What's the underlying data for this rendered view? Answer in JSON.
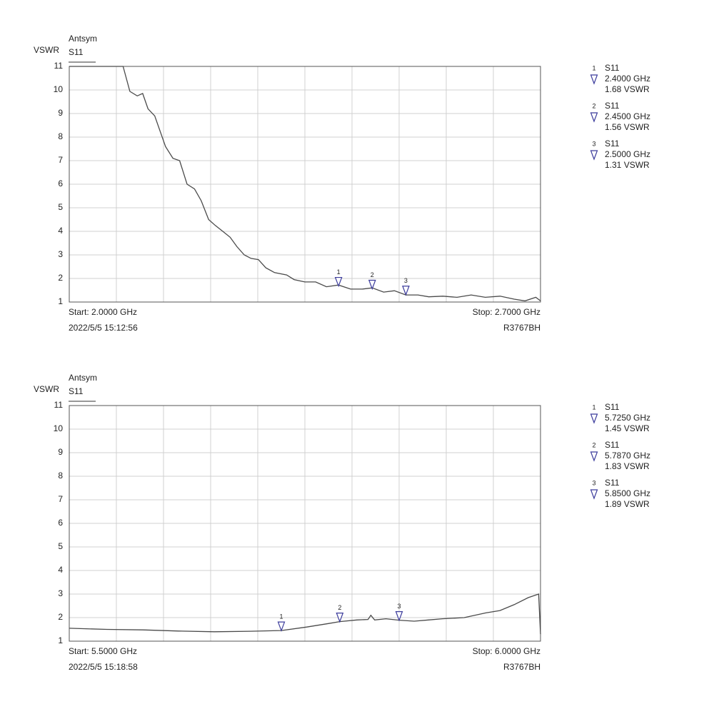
{
  "chart_data": [
    {
      "type": "line",
      "title": "Antsym",
      "y_label": "VSWR",
      "start_label": "Start: 2.0000 GHz",
      "stop_label": "Stop: 2.7000 GHz",
      "timestamp": "2022/5/5 15:12:56",
      "instrument": "R3767BH",
      "xlim": [
        2.0,
        2.7
      ],
      "ylim": [
        1,
        11
      ],
      "yticks": [
        1,
        2,
        3,
        4,
        5,
        6,
        7,
        8,
        9,
        10,
        11
      ],
      "grid": true,
      "x": [
        2.0,
        2.08,
        2.09,
        2.101,
        2.109,
        2.117,
        2.127,
        2.143,
        2.154,
        2.164,
        2.175,
        2.186,
        2.196,
        2.207,
        2.217,
        2.228,
        2.239,
        2.249,
        2.26,
        2.27,
        2.281,
        2.292,
        2.305,
        2.323,
        2.334,
        2.35,
        2.366,
        2.382,
        2.4,
        2.418,
        2.435,
        2.45,
        2.467,
        2.483,
        2.5,
        2.518,
        2.534,
        2.555,
        2.576,
        2.597,
        2.618,
        2.64,
        2.661,
        2.677,
        2.693,
        2.7
      ],
      "series": [
        {
          "name": "S11",
          "color": "#4a4a4a",
          "values": [
            11,
            11,
            9.94,
            9.75,
            9.85,
            9.2,
            8.9,
            7.6,
            7.1,
            7.0,
            6.0,
            5.8,
            5.3,
            4.5,
            4.25,
            4.0,
            3.75,
            3.35,
            3.0,
            2.85,
            2.8,
            2.45,
            2.25,
            2.15,
            1.95,
            1.85,
            1.85,
            1.65,
            1.72,
            1.55,
            1.55,
            1.6,
            1.42,
            1.48,
            1.3,
            1.3,
            1.22,
            1.25,
            1.2,
            1.3,
            1.2,
            1.25,
            1.12,
            1.05,
            1.2,
            1.05
          ]
        }
      ],
      "markers": [
        {
          "number": "1",
          "trace": "S11",
          "x": 2.4,
          "x_label": "2.4000 GHz",
          "value": 1.68,
          "value_label": "1.68 VSWR"
        },
        {
          "number": "2",
          "trace": "S11",
          "x": 2.45,
          "x_label": "2.4500 GHz",
          "value": 1.56,
          "value_label": "1.56 VSWR"
        },
        {
          "number": "3",
          "trace": "S11",
          "x": 2.5,
          "x_label": "2.5000 GHz",
          "value": 1.31,
          "value_label": "1.31 VSWR"
        }
      ]
    },
    {
      "type": "line",
      "title": "Antsym",
      "y_label": "VSWR",
      "start_label": "Start: 5.5000 GHz",
      "stop_label": "Stop: 6.0000 GHz",
      "timestamp": "2022/5/5 15:18:58",
      "instrument": "R3767BH",
      "xlim": [
        5.5,
        6.0
      ],
      "ylim": [
        1,
        11
      ],
      "yticks": [
        1,
        2,
        3,
        4,
        5,
        6,
        7,
        8,
        9,
        10,
        11
      ],
      "grid": true,
      "x": [
        5.5,
        5.54,
        5.578,
        5.616,
        5.654,
        5.692,
        5.725,
        5.752,
        5.775,
        5.787,
        5.805,
        5.817,
        5.82,
        5.824,
        5.836,
        5.85,
        5.866,
        5.881,
        5.896,
        5.919,
        5.942,
        5.957,
        5.972,
        5.987,
        5.998,
        6.0
      ],
      "series": [
        {
          "name": "S11",
          "color": "#4a4a4a",
          "values": [
            1.55,
            1.5,
            1.48,
            1.43,
            1.4,
            1.42,
            1.45,
            1.6,
            1.75,
            1.83,
            1.9,
            1.92,
            2.1,
            1.9,
            1.95,
            1.89,
            1.85,
            1.9,
            1.95,
            2.0,
            2.2,
            2.3,
            2.55,
            2.85,
            3.0,
            1.3
          ]
        }
      ],
      "markers": [
        {
          "number": "1",
          "trace": "S11",
          "x": 5.725,
          "x_label": "5.7250 GHz",
          "value": 1.45,
          "value_label": "1.45 VSWR"
        },
        {
          "number": "2",
          "trace": "S11",
          "x": 5.787,
          "x_label": "5.7870 GHz",
          "value": 1.83,
          "value_label": "1.83 VSWR"
        },
        {
          "number": "3",
          "trace": "S11",
          "x": 5.85,
          "x_label": "5.8500 GHz",
          "value": 1.89,
          "value_label": "1.89 VSWR"
        }
      ]
    }
  ]
}
